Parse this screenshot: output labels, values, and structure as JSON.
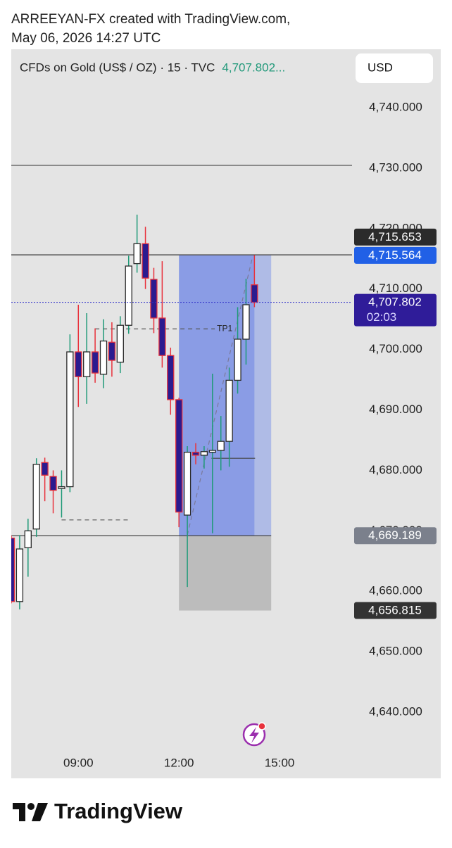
{
  "header": {
    "line1": "ARREEYAN-FX created with TradingView.com,",
    "line2": "May 06, 2026 14:27 UTC"
  },
  "footer": {
    "brand": "TradingView"
  },
  "chart_data": {
    "type": "candlestick",
    "symbol": "CFDs on Gold (US$ / OZ) · 15 · TVC",
    "last_price_text": "4,707.802...",
    "currency": "USD",
    "x": [
      7,
      7.25,
      7.5,
      7.75,
      8,
      8.25,
      8.5,
      8.75,
      9,
      9.25,
      9.5,
      9.75,
      10,
      10.25,
      10.5,
      10.75,
      11,
      11.25,
      11.5,
      11.75,
      12,
      12.25,
      12.5,
      12.75,
      13,
      13.25,
      13.5,
      13.75,
      14,
      14.25
    ],
    "open": [
      4668.8,
      4658.3,
      4667.2,
      4670.3,
      4681.3,
      4679.0,
      4677.0,
      4677.3,
      4699.6,
      4695.5,
      4699.6,
      4695.9,
      4701.2,
      4697.9,
      4704.0,
      4714.2,
      4717.5,
      4711.6,
      4705.2,
      4699.0,
      4691.7,
      4672.6,
      4683.0,
      4682.5,
      4683.0,
      4683.3,
      4684.8,
      4694.9,
      4701.7,
      4710.7
    ],
    "high": [
      4669.2,
      4669.3,
      4672.0,
      4682.0,
      4682.1,
      4680.0,
      4680.0,
      4702.5,
      4707.4,
      4706.0,
      4703.5,
      4705.0,
      4704.5,
      4705.5,
      4715.5,
      4722.3,
      4720.3,
      4713.5,
      4714.6,
      4700.3,
      4692.0,
      4684.0,
      4684.5,
      4684.0,
      4696.0,
      4689.0,
      4697.0,
      4707.0,
      4711.7,
      4715.6
    ],
    "low": [
      4658.0,
      4657.0,
      4662.4,
      4669.0,
      4674.9,
      4672.9,
      4672.2,
      4676.4,
      4690.5,
      4691.0,
      4694.5,
      4693.6,
      4695.5,
      4696.1,
      4702.6,
      4712.7,
      4710.0,
      4702.7,
      4697.0,
      4689.2,
      4670.6,
      4660.7,
      4681.0,
      4680.3,
      4669.6,
      4680.0,
      4680.6,
      4692.7,
      4697.5,
      4707.0
    ],
    "close": [
      4658.3,
      4667.0,
      4670.0,
      4681.0,
      4679.2,
      4676.7,
      4677.3,
      4699.6,
      4695.5,
      4699.6,
      4696.1,
      4701.4,
      4698.2,
      4704.0,
      4713.8,
      4717.5,
      4711.8,
      4705.2,
      4699.0,
      4691.7,
      4673.1,
      4683.0,
      4682.5,
      4683.1,
      4683.3,
      4684.8,
      4694.9,
      4701.7,
      4707.4,
      4707.8
    ],
    "up_color": "#ffffff",
    "up_border": "#2a2a2a",
    "up_wick": "#1f9a78",
    "down_color": "#2b1b8f",
    "down_border": "#e8323c",
    "down_wick": "#e8323c",
    "xlim": [
      7.0,
      17.16
    ],
    "ylim": [
      4633.83,
      4749.66
    ],
    "xticks": [
      {
        "value": 9,
        "label": "09:00"
      },
      {
        "value": 12,
        "label": "12:00"
      },
      {
        "value": 15,
        "label": "15:00"
      }
    ],
    "yticks": [
      {
        "value": 4640,
        "label": "4,640.000"
      },
      {
        "value": 4650,
        "label": "4,650.000"
      },
      {
        "value": 4660,
        "label": "4,660.000"
      },
      {
        "value": 4670,
        "label": "4,670.000"
      },
      {
        "value": 4680,
        "label": "4,680.000"
      },
      {
        "value": 4690,
        "label": "4,690.000"
      },
      {
        "value": 4700,
        "label": "4,700.000"
      },
      {
        "value": 4710,
        "label": "4,710.000"
      },
      {
        "value": 4720,
        "label": "4,720.000"
      },
      {
        "value": 4730,
        "label": "4,730.000"
      },
      {
        "value": 4740,
        "label": "4,740.000"
      }
    ],
    "grid": false,
    "position": {
      "start": 12,
      "end": 14.75,
      "fill_end": 14.25,
      "entry": 4669.189,
      "target": 4715.564,
      "stop": 4656.815
    },
    "hlines": [
      {
        "price": 4730.45,
        "x_end": 17.16,
        "color": "#555555"
      },
      {
        "price": 4715.653,
        "x_end": 17.16,
        "color": "#333333"
      },
      {
        "price": 4669.189,
        "x_end": 14.75,
        "color": "#444444"
      }
    ],
    "dashed_lines": [
      {
        "price": 4703.4,
        "x_start": 9.5,
        "x_end": 13.07,
        "label": "TP1"
      },
      {
        "price": 4671.8,
        "x_start": 8.5,
        "x_end": 10.49
      }
    ],
    "segments": [
      {
        "x": [
          12.97,
          14.27
        ],
        "y": [
          4682.0,
          4682.0
        ],
        "dashed": false
      },
      {
        "x": [
          12.25,
          14.18
        ],
        "y": [
          4669.3,
          4715.0
        ],
        "dashed": true
      }
    ],
    "current_price": 4707.802,
    "price_labels": [
      {
        "value": 4715.564,
        "label": "4,715.564",
        "color": "#2160e6"
      },
      {
        "value": 4707.802,
        "label": "4,707.802",
        "color": "#2f1c99",
        "countdown": "02:03"
      },
      {
        "value": 4669.189,
        "label": "4,669.189",
        "color": "#7b808c"
      },
      {
        "value": 4656.815,
        "label": "4,656.815",
        "color": "#333333"
      },
      {
        "value": 4715.653,
        "label": "4,715.653",
        "color": "#2b2b2b"
      }
    ]
  }
}
